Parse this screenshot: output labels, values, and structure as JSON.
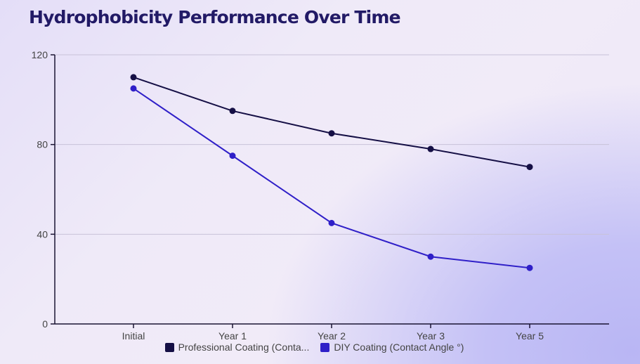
{
  "chart_data": {
    "type": "line",
    "title": "Hydrophobicity Performance Over Time",
    "categories": [
      "Initial",
      "Year 1",
      "Year 2",
      "Year 3",
      "Year 5"
    ],
    "series": [
      {
        "name": "Professional Coating (Conta...",
        "color": "#150f45",
        "values": [
          110,
          95,
          85,
          78,
          70
        ]
      },
      {
        "name": "DIY Coating (Contact Angle °)",
        "color": "#2f1fc8",
        "values": [
          105,
          75,
          45,
          30,
          25
        ]
      }
    ],
    "yticks": [
      0,
      40,
      80,
      120
    ],
    "ylim": [
      0,
      120
    ],
    "grid": true,
    "legend": "bottom"
  }
}
